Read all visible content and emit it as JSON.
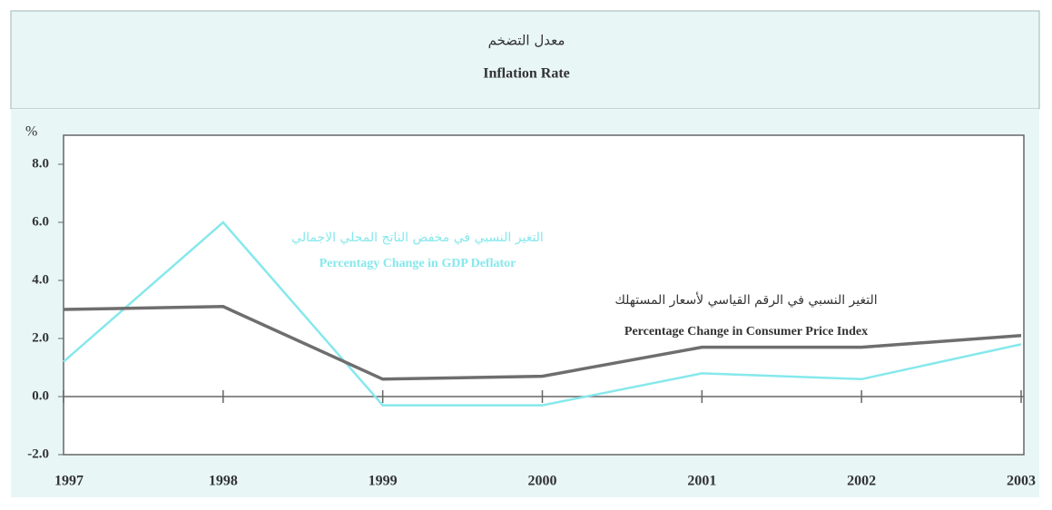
{
  "chart_data": {
    "type": "line",
    "title_ar": "معدل التضخم",
    "title": "Inflation Rate",
    "ylabel": "%",
    "x": [
      1997,
      1998,
      1999,
      2000,
      2001,
      2002,
      2003
    ],
    "xlim": [
      1997,
      2003
    ],
    "xticks": [
      1997,
      1998,
      1999,
      2000,
      2001,
      2002,
      2003
    ],
    "ylim": [
      -2,
      9
    ],
    "yticks": [
      {
        "value": -2,
        "label": "-2.0"
      },
      {
        "value": 0,
        "label": "0.0"
      },
      {
        "value": 2,
        "label": "2.0"
      },
      {
        "value": 4,
        "label": "4.0"
      },
      {
        "value": 6,
        "label": "6.0"
      },
      {
        "value": 8,
        "label": "8.0"
      }
    ],
    "series": [
      {
        "name": "Percentagy Change in GDP Deflator",
        "name_ar": "التغير النسبي في مخفض الناتج المحلي الاجمالي",
        "color": "#86e8ec",
        "values": [
          1.2,
          6.0,
          -0.3,
          -0.3,
          0.8,
          0.6,
          1.8
        ]
      },
      {
        "name": "Percentage Change in Consumer Price Index",
        "name_ar": "التغير النسبي في الرقم القياسي لأسعار المستهلك",
        "color": "#6e6e6e",
        "values": [
          3.0,
          3.1,
          0.6,
          0.7,
          1.7,
          1.7,
          2.1
        ]
      }
    ]
  }
}
